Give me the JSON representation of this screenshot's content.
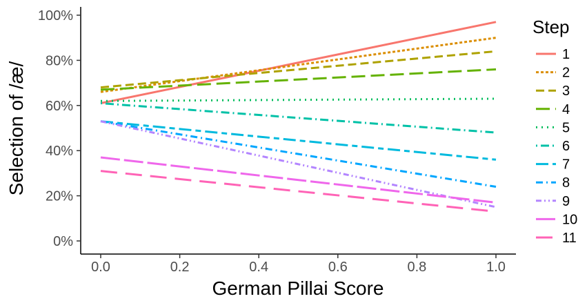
{
  "chart_data": {
    "type": "line",
    "xlabel": "German Pillai Score",
    "ylabel": "Selection of /æ/",
    "xlim": [
      0,
      1
    ],
    "ylim": [
      0,
      100
    ],
    "x_ticks": [
      "0.0",
      "0.2",
      "0.4",
      "0.6",
      "0.8",
      "1.0"
    ],
    "y_ticks": [
      "0%",
      "20%",
      "40%",
      "60%",
      "80%",
      "100%"
    ],
    "grid": false,
    "legend": {
      "title": "Step",
      "position": "right"
    },
    "x": [
      0,
      1
    ],
    "series": [
      {
        "name": "1",
        "values": [
          61,
          97
        ],
        "color": "#F8766D",
        "dash": "solid"
      },
      {
        "name": "2",
        "values": [
          66,
          90
        ],
        "color": "#DB8E00",
        "dash": "dotted-short"
      },
      {
        "name": "3",
        "values": [
          68,
          84
        ],
        "color": "#AEA200",
        "dash": "dashed"
      },
      {
        "name": "4",
        "values": [
          67,
          76
        ],
        "color": "#64B200",
        "dash": "longdash"
      },
      {
        "name": "5",
        "values": [
          62,
          63
        ],
        "color": "#00BD5C",
        "dash": "dotted"
      },
      {
        "name": "6",
        "values": [
          61,
          48
        ],
        "color": "#00C1A7",
        "dash": "dotdash"
      },
      {
        "name": "7",
        "values": [
          53,
          36
        ],
        "color": "#00BADE",
        "dash": "twodash"
      },
      {
        "name": "8",
        "values": [
          53,
          24
        ],
        "color": "#00A6FF",
        "dash": "dash-dot"
      },
      {
        "name": "9",
        "values": [
          53,
          15
        ],
        "color": "#B385FF",
        "dash": "dash-dot-dot"
      },
      {
        "name": "10",
        "values": [
          37,
          17
        ],
        "color": "#EF67EB",
        "dash": "long"
      },
      {
        "name": "11",
        "values": [
          31,
          13
        ],
        "color": "#FF63B6",
        "dash": "long-gap"
      }
    ]
  }
}
